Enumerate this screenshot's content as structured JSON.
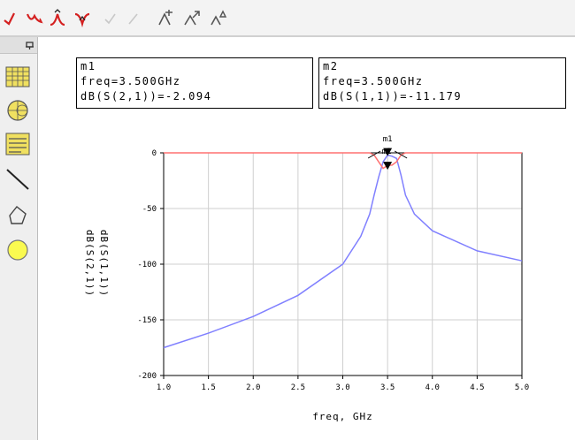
{
  "toolbar": {
    "buttons": [
      {
        "icon": "s21-trace-icon",
        "color": "#d42020"
      },
      {
        "icon": "curve-down-icon",
        "color": "#d42020"
      },
      {
        "icon": "peak-trace-icon",
        "color": "#d42020"
      },
      {
        "icon": "valley-trace-icon",
        "color": "#d42020"
      },
      {
        "icon": "check-disabled-icon",
        "color": "#c8c8c8"
      },
      {
        "icon": "line-disabled-icon",
        "color": "#c8c8c8"
      },
      {
        "icon": "marker-add-icon",
        "color": "#555555"
      },
      {
        "icon": "marker-move-icon",
        "color": "#555555"
      },
      {
        "icon": "marker-delta-icon",
        "color": "#555555"
      }
    ]
  },
  "palette": {
    "pin_icon": "pin-icon",
    "items": [
      {
        "icon": "table-icon"
      },
      {
        "icon": "smith-chart-icon"
      },
      {
        "icon": "list-icon"
      },
      {
        "icon": "line-tool-icon"
      },
      {
        "icon": "polygon-tool-icon"
      },
      {
        "icon": "circle-tool-icon"
      }
    ]
  },
  "markers": [
    {
      "name": "m1",
      "line1": "m1",
      "line2": "freq=3.500GHz",
      "line3": "dB(S(2,1))=-2.094"
    },
    {
      "name": "m2",
      "line1": "m2",
      "line2": "freq=3.500GHz",
      "line3": "dB(S(1,1))=-11.179"
    }
  ],
  "chart_data": {
    "type": "line",
    "xlabel": "freq, GHz",
    "ylabels": [
      {
        "text": "dB(S(2,1))",
        "color": "#2222ff"
      },
      {
        "text": "dB(S(1,1))",
        "color": "#ff2222"
      }
    ],
    "xlim": [
      1.0,
      5.0
    ],
    "ylim": [
      -200,
      0
    ],
    "xticks": [
      "1.0",
      "1.5",
      "2.0",
      "2.5",
      "3.0",
      "3.5",
      "4.0",
      "4.5",
      "5.0"
    ],
    "yticks": [
      "0",
      "-50",
      "-100",
      "-150",
      "-200"
    ],
    "grid": true,
    "series": [
      {
        "color": "#8080ff",
        "x": [
          1.0,
          1.5,
          2.0,
          2.5,
          3.0,
          3.2,
          3.3,
          3.35,
          3.4,
          3.45,
          3.5,
          3.55,
          3.6,
          3.65,
          3.7,
          3.8,
          4.0,
          4.5,
          5.0
        ],
        "y": [
          -175,
          -162,
          -147,
          -128,
          -100,
          -75,
          -55,
          -38,
          -22,
          -8,
          -2.1,
          -3,
          -5,
          -20,
          -38,
          -55,
          -70,
          -88,
          -97
        ]
      },
      {
        "color": "#ff7070",
        "x": [
          1.0,
          3.3,
          3.35,
          3.4,
          3.45,
          3.5,
          3.55,
          3.6,
          3.65,
          3.7,
          5.0
        ],
        "y": [
          0,
          0,
          -2,
          -8,
          -14,
          -11.2,
          -11,
          -8,
          -2,
          0,
          0
        ]
      }
    ],
    "marker_labels": [
      "m1",
      "m2"
    ]
  }
}
